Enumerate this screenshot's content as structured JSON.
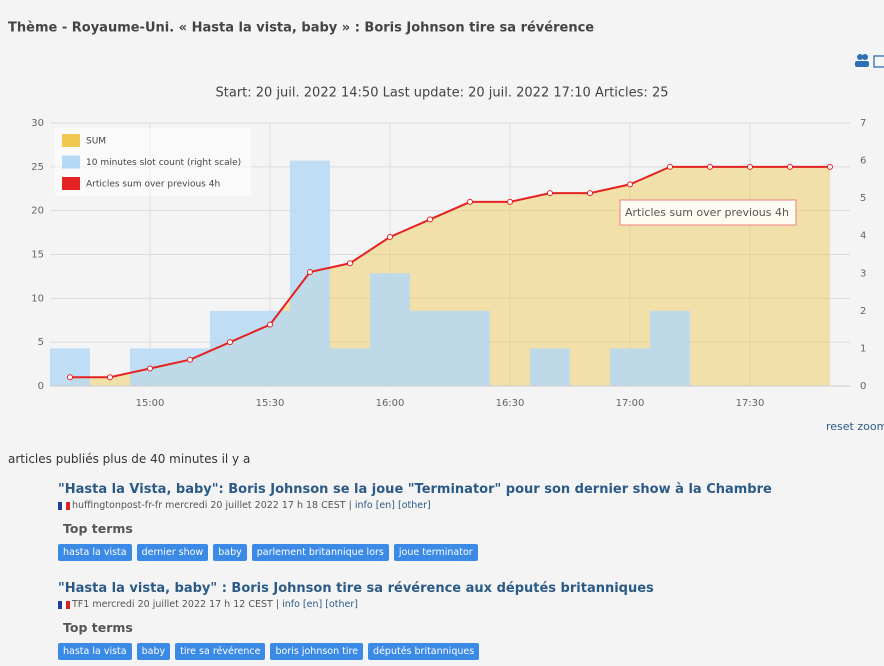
{
  "header": {
    "title": "Thème - Royaume-Uni. « Hasta la vista, baby » : Boris Johnson tire sa révérence"
  },
  "chart_data": {
    "type": "combo",
    "title": "Start: 20 juil. 2022 14:50 Last update: 20 juil. 2022 17:10 Articles: 25",
    "categories": [
      null,
      null,
      "15:00",
      null,
      null,
      "15:30",
      null,
      null,
      "16:00",
      null,
      null,
      "16:30",
      null,
      null,
      "17:00",
      null,
      null,
      "17:30",
      null,
      null
    ],
    "series": [
      {
        "name": "SUM",
        "type": "area",
        "color": "#f0c850",
        "values": [
          1,
          1,
          2,
          3,
          5,
          7,
          13,
          14,
          17,
          19,
          21,
          21,
          22,
          22,
          23,
          25,
          25,
          25,
          25,
          25
        ]
      },
      {
        "name": "10 minutes slot count (right scale)",
        "type": "bar",
        "axis": "y2",
        "color": "#b5d8f5",
        "values": [
          1,
          0,
          1,
          1,
          2,
          2,
          6,
          1,
          3,
          2,
          2,
          0,
          1,
          0,
          1,
          2,
          0,
          0,
          0,
          0
        ]
      },
      {
        "name": "Articles sum over previous 4h",
        "type": "line",
        "color": "#e52222",
        "values": [
          1,
          1,
          2,
          3,
          5,
          7,
          13,
          14,
          17,
          19,
          21,
          21,
          22,
          22,
          23,
          25,
          25,
          25,
          25,
          25
        ]
      }
    ],
    "ylim": [
      0,
      30
    ],
    "yticks": [
      0,
      5,
      10,
      15,
      20,
      25,
      30
    ],
    "y2lim": [
      0,
      7
    ],
    "y2ticks": [
      0,
      1,
      2,
      3,
      4,
      5,
      6,
      7
    ],
    "grid": true,
    "legend": "top-left",
    "annotation": "Articles sum over previous 4h",
    "reset_zoom": "reset zoom"
  },
  "section_label": "articles publiés plus de 40 minutes il y a",
  "articles": [
    {
      "title": "\"Hasta la Vista, baby\": Boris Johnson se la joue \"Terminator\" pour son dernier show à la Chambre",
      "source": "huffingtonpost-fr-fr",
      "date": "mercredi 20 juillet 2022 17 h 18 CEST",
      "separator": "|",
      "links": [
        "info",
        "[en]",
        "[other]"
      ],
      "terms_label": "Top terms",
      "terms": [
        "hasta la vista",
        "dernier show",
        "baby",
        "parlement britannique lors",
        "joue terminator"
      ]
    },
    {
      "title": "\"Hasta la vista, baby\" : Boris Johnson tire sa révérence aux députés britanniques",
      "source": "TF1",
      "date": "mercredi 20 juillet 2022 17 h 12 CEST",
      "separator": "|",
      "links": [
        "info",
        "[en]",
        "[other]"
      ],
      "terms_label": "Top terms",
      "terms": [
        "hasta la vista",
        "baby",
        "tire sa révérence",
        "boris johnson tire",
        "députés britanniques"
      ]
    }
  ]
}
